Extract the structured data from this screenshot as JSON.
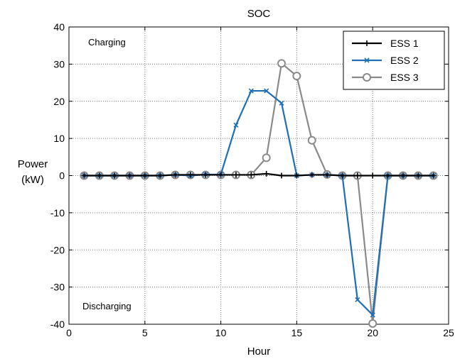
{
  "chart_data": {
    "type": "line",
    "title": "SOC",
    "xlabel": "Hour",
    "ylabel_line1": "Power",
    "ylabel_line2": "(kW)",
    "xlim": [
      0,
      25
    ],
    "ylim": [
      -40,
      40
    ],
    "xticks": [
      0,
      5,
      10,
      15,
      20,
      25
    ],
    "yticks": [
      -40,
      -30,
      -20,
      -10,
      0,
      10,
      20,
      30,
      40
    ],
    "grid": true,
    "legend_position": "top-right",
    "annotations": {
      "top": "Charging",
      "bottom": "Discharging"
    },
    "x": [
      1,
      2,
      3,
      4,
      5,
      6,
      7,
      8,
      9,
      10,
      11,
      12,
      13,
      14,
      15,
      16,
      17,
      18,
      19,
      20,
      21,
      22,
      23,
      24
    ],
    "series": [
      {
        "name": "ESS 1",
        "color": "#000000",
        "marker": "plus",
        "values": [
          0,
          0,
          0,
          0,
          0,
          0,
          0.2,
          0.2,
          0.2,
          0.2,
          0.2,
          0.2,
          0.5,
          0,
          0,
          0.2,
          0.2,
          0,
          0,
          0,
          0,
          0,
          0,
          0
        ]
      },
      {
        "name": "ESS 2",
        "color": "#1f6fb5",
        "marker": "x",
        "values": [
          0,
          0,
          0,
          0,
          0,
          0,
          0.2,
          0,
          0.3,
          0.3,
          13.6,
          22.8,
          22.8,
          19.5,
          0,
          0.2,
          0.2,
          0,
          -33.4,
          -37.5,
          0,
          0,
          0,
          0
        ]
      },
      {
        "name": "ESS 3",
        "color": "#8a8a8a",
        "marker": "circle",
        "values": [
          0,
          0,
          0,
          0,
          0,
          0,
          0.2,
          0.2,
          0.2,
          0.2,
          0.2,
          0.2,
          4.8,
          30.2,
          26.8,
          9.5,
          0.3,
          0,
          0,
          -39.8,
          0,
          0,
          0,
          0
        ]
      }
    ]
  }
}
